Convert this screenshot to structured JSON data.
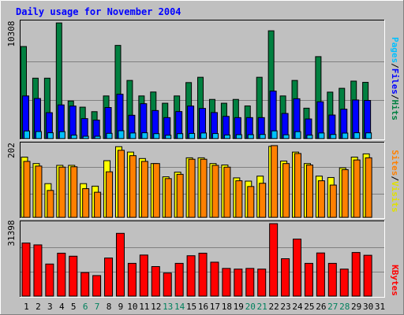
{
  "title": "Daily usage for November 2004",
  "colors": {
    "background": "#c0c0c0",
    "title": "#0000ff",
    "hits": "#008040",
    "files": "#0000ff",
    "pages": "#00c0ff",
    "visits": "#ffff00",
    "sites": "#ff8000",
    "kbytes": "#ff0000",
    "weekend_day": "#00805c",
    "weekday": "#000000"
  },
  "chart_data": [
    {
      "type": "bar",
      "panel": "hits-files-pages",
      "ymax_label": "10308",
      "ylim": [
        0,
        10308
      ],
      "legend": [
        "Pages",
        "/",
        "Files",
        "/",
        "Hits"
      ],
      "categories": [
        "1",
        "2",
        "3",
        "4",
        "5",
        "6",
        "7",
        "8",
        "9",
        "10",
        "11",
        "12",
        "13",
        "14",
        "15",
        "16",
        "17",
        "18",
        "19",
        "20",
        "21",
        "22",
        "23",
        "24",
        "25",
        "26",
        "27",
        "28",
        "29",
        "30",
        "31"
      ],
      "series": [
        {
          "name": "Hits",
          "values": [
            8200,
            5380,
            5380,
            10300,
            3350,
            2800,
            2400,
            3800,
            8300,
            5180,
            3800,
            4150,
            3150,
            3800,
            4990,
            5460,
            3490,
            3150,
            3490,
            2910,
            5460,
            9600,
            3800,
            5180,
            2710,
            7300,
            4140,
            4480,
            5120,
            5010,
            0
          ]
        },
        {
          "name": "Files",
          "values": [
            3800,
            3570,
            2310,
            3000,
            2900,
            1780,
            1650,
            2770,
            3950,
            2080,
            3110,
            2500,
            1870,
            2410,
            2900,
            2690,
            2320,
            1980,
            1870,
            1870,
            1870,
            4230,
            2240,
            3550,
            1750,
            3280,
            2100,
            2620,
            3440,
            3400,
            0
          ]
        },
        {
          "name": "Pages",
          "values": [
            680,
            630,
            520,
            620,
            310,
            210,
            210,
            470,
            700,
            500,
            520,
            440,
            300,
            440,
            460,
            500,
            450,
            320,
            350,
            350,
            370,
            690,
            340,
            620,
            310,
            500,
            370,
            490,
            520,
            510,
            0
          ]
        }
      ]
    },
    {
      "type": "bar",
      "panel": "visits-sites",
      "ymax_label": "202",
      "ylim": [
        0,
        202
      ],
      "legend": [
        "Sites",
        "/",
        "Visits"
      ],
      "categories": [
        "1",
        "2",
        "3",
        "4",
        "5",
        "6",
        "7",
        "8",
        "9",
        "10",
        "11",
        "12",
        "13",
        "14",
        "15",
        "16",
        "17",
        "18",
        "19",
        "20",
        "21",
        "22",
        "23",
        "24",
        "25",
        "26",
        "27",
        "28",
        "29",
        "30",
        "31"
      ],
      "series": [
        {
          "name": "Visits",
          "values": [
            168,
            150,
            94,
            145,
            145,
            94,
            87,
            158,
            197,
            182,
            164,
            150,
            113,
            126,
            166,
            166,
            150,
            146,
            110,
            101,
            115,
            198,
            157,
            182,
            150,
            115,
            111,
            138,
            168,
            177,
            0
          ]
        },
        {
          "name": "Sites",
          "values": [
            156,
            143,
            75,
            140,
            141,
            80,
            70,
            127,
            187,
            172,
            156,
            150,
            108,
            120,
            162,
            162,
            145,
            140,
            102,
            86,
            95,
            200,
            150,
            178,
            146,
            102,
            90,
            133,
            160,
            166,
            0
          ]
        }
      ]
    },
    {
      "type": "bar",
      "panel": "kbytes",
      "ymax_label": "31398",
      "ylim": [
        0,
        31398
      ],
      "legend": [
        "KBytes"
      ],
      "categories": [
        "1",
        "2",
        "3",
        "4",
        "5",
        "6",
        "7",
        "8",
        "9",
        "10",
        "11",
        "12",
        "13",
        "14",
        "15",
        "16",
        "17",
        "18",
        "19",
        "20",
        "21",
        "22",
        "23",
        "24",
        "25",
        "26",
        "27",
        "28",
        "29",
        "30",
        "31"
      ],
      "series": [
        {
          "name": "KBytes",
          "values": [
            23000,
            22200,
            13900,
            18600,
            17300,
            10200,
            8900,
            16500,
            27200,
            14200,
            17800,
            12800,
            10000,
            14200,
            17500,
            18600,
            14700,
            12000,
            11700,
            12000,
            11700,
            31398,
            16200,
            24700,
            14200,
            18700,
            14200,
            11700,
            18900,
            17700,
            0
          ]
        }
      ]
    }
  ]
}
